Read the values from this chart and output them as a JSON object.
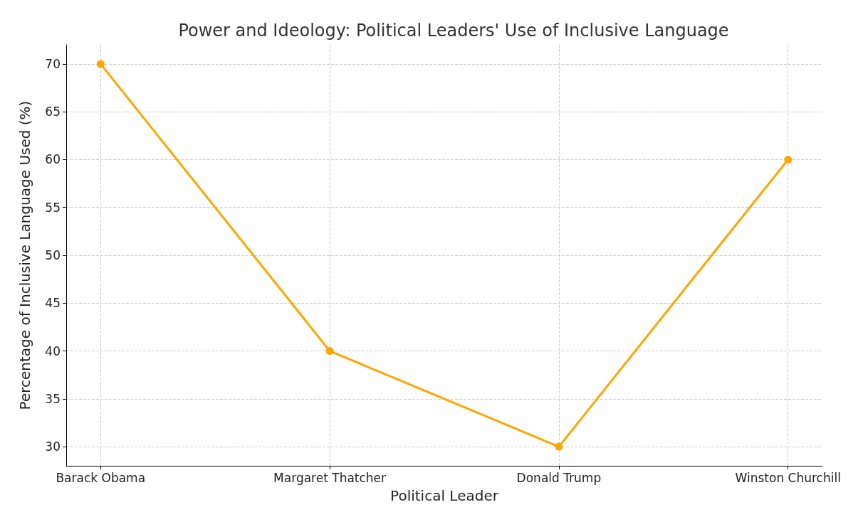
{
  "chart_data": {
    "type": "line",
    "title": "Power and Ideology: Political Leaders' Use of Inclusive Language",
    "xlabel": "Political Leader",
    "ylabel": "Percentage of Inclusive Language Used (%)",
    "categories": [
      "Barack Obama",
      "Margaret Thatcher",
      "Donald Trump",
      "Winston Churchill"
    ],
    "series": [
      {
        "color": "#ffa500",
        "values": [
          70,
          40,
          30,
          60
        ]
      }
    ],
    "ylim": [
      28,
      72
    ],
    "yticks": [
      30,
      35,
      40,
      45,
      50,
      55,
      60,
      65,
      70
    ],
    "grid": true,
    "marker": "circle",
    "line_style": "solid"
  }
}
